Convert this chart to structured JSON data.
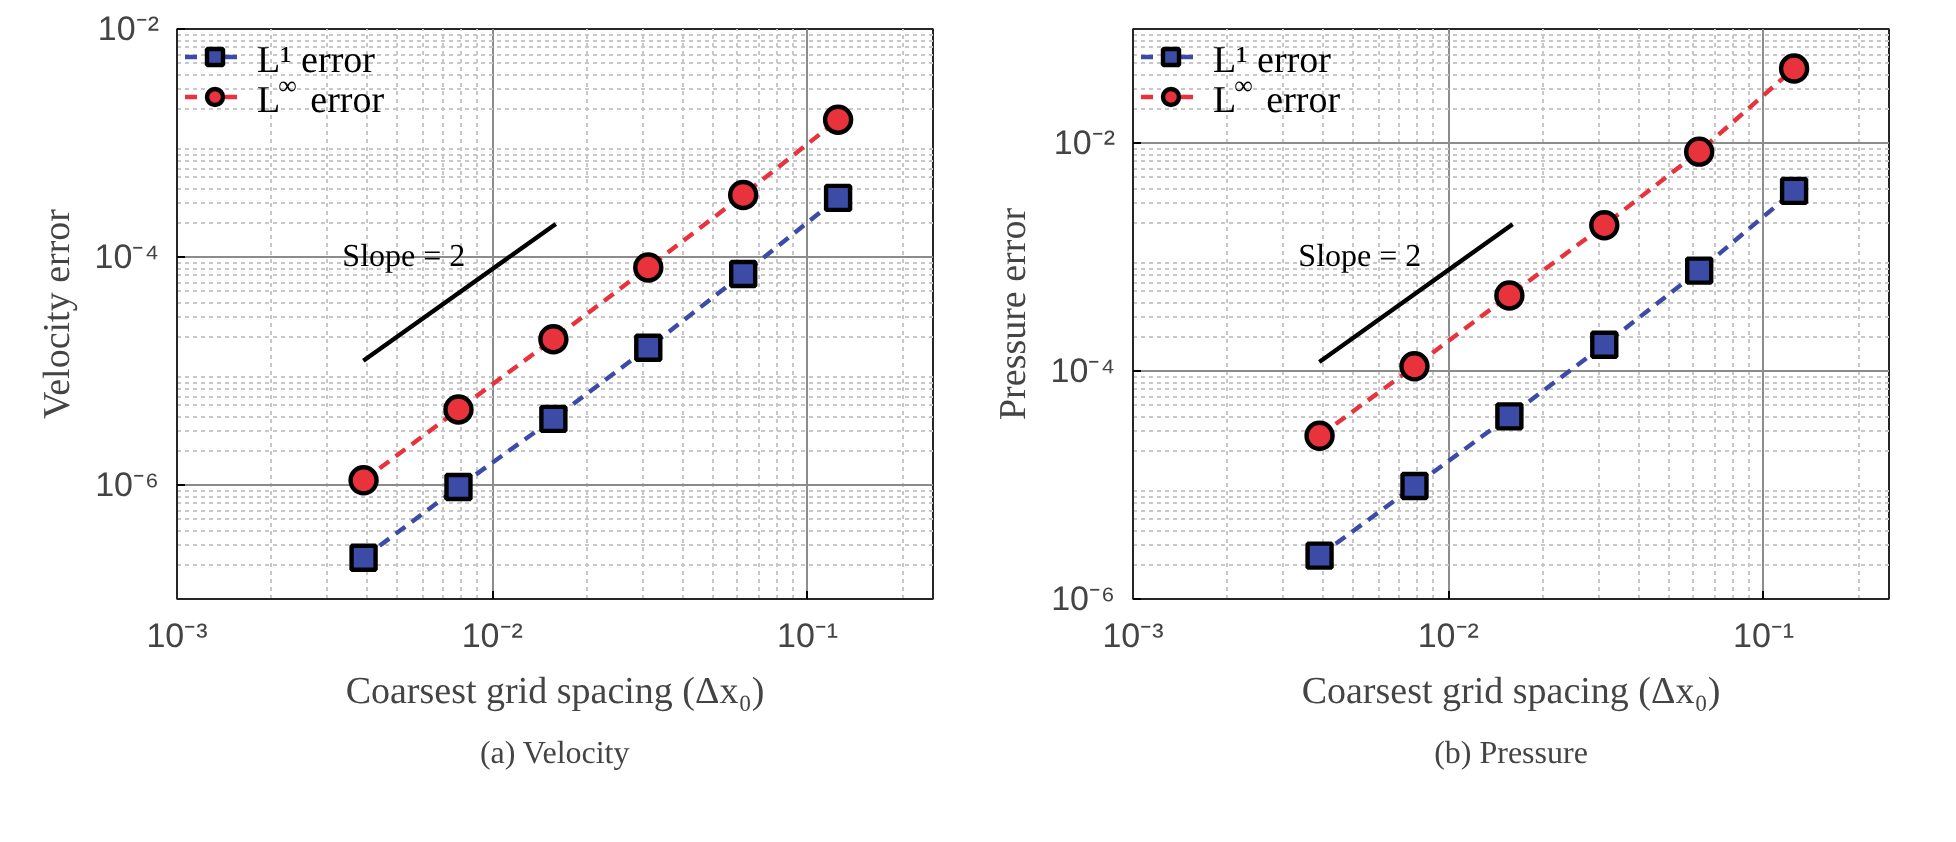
{
  "chart_data": [
    {
      "type": "line",
      "xlabel": "Coarsest grid spacing (Δx₀)",
      "ylabel": "Velocity error",
      "log": "xy",
      "grid": true,
      "legend": "top left",
      "line_style": "dashed",
      "x": [
        0.00390625,
        0.0078125,
        0.015625,
        0.03125,
        0.0625,
        0.125
      ],
      "xlim": [
        0.001,
        0.25
      ],
      "ylim": [
        1e-07,
        0.01
      ],
      "xticks": [
        {
          "value": 0.001,
          "label": "10⁻³"
        },
        {
          "value": 0.01,
          "label": "10⁻²"
        },
        {
          "value": 0.1,
          "label": "10⁻¹"
        }
      ],
      "yticks": [
        {
          "value": 1e-06,
          "label": "10⁻⁶"
        },
        {
          "value": 0.0001,
          "label": "10⁻⁴"
        },
        {
          "value": 0.01,
          "label": "10⁻²"
        }
      ],
      "series": [
        {
          "name": "L¹ error",
          "color": "#3b4ba6",
          "marker": "square",
          "values": [
            2.3e-07,
            9.6e-07,
            3.8e-06,
            1.6e-05,
            7.1e-05,
            0.00033
          ]
        },
        {
          "name": "L$^{∞}$ error",
          "color": "#e8323c",
          "marker": "circle",
          "values": [
            1.1e-06,
            4.6e-06,
            1.9e-05,
            8.1e-05,
            0.00035,
            0.0016
          ]
        },
        {
          "color": "#000000",
          "marker": "none",
          "line_style": "solid",
          "x": [
            0.0039,
            0.0159
          ],
          "values": [
            1.23e-05,
            0.000195
          ]
        }
      ],
      "annotations": [
        "Slope = 2",
        "(a) Velocity"
      ]
    },
    {
      "type": "line",
      "xlabel": "Coarsest grid spacing (Δx₀)",
      "ylabel": "Pressure error",
      "log": "xy",
      "grid": true,
      "legend": "top left",
      "line_style": "dashed",
      "x": [
        0.00390625,
        0.0078125,
        0.015625,
        0.03125,
        0.0625,
        0.125
      ],
      "xlim": [
        0.001,
        0.25
      ],
      "ylim": [
        1e-06,
        0.1
      ],
      "xticks": [
        {
          "value": 0.001,
          "label": "10⁻³"
        },
        {
          "value": 0.01,
          "label": "10⁻²"
        },
        {
          "value": 0.1,
          "label": "10⁻¹"
        }
      ],
      "yticks": [
        {
          "value": 1e-06,
          "label": "10⁻⁶"
        },
        {
          "value": 0.0001,
          "label": "10⁻⁴"
        },
        {
          "value": 0.01,
          "label": "10⁻²"
        }
      ],
      "series": [
        {
          "name": "L¹ error",
          "color": "#3b4ba6",
          "marker": "square",
          "values": [
            2.4e-06,
            9.8e-06,
            4e-05,
            0.00017,
            0.00076,
            0.0038
          ]
        },
        {
          "name": "L$^{∞}$ error",
          "color": "#e8323c",
          "marker": "circle",
          "values": [
            2.7e-05,
            0.00011,
            0.00046,
            0.0019,
            0.0084,
            0.045
          ]
        },
        {
          "color": "#000000",
          "marker": "none",
          "line_style": "solid",
          "x": [
            0.0039,
            0.016
          ],
          "values": [
            0.00012,
            0.00194
          ]
        }
      ],
      "annotations": [
        "Slope = 2",
        "(b) Pressure"
      ]
    }
  ]
}
